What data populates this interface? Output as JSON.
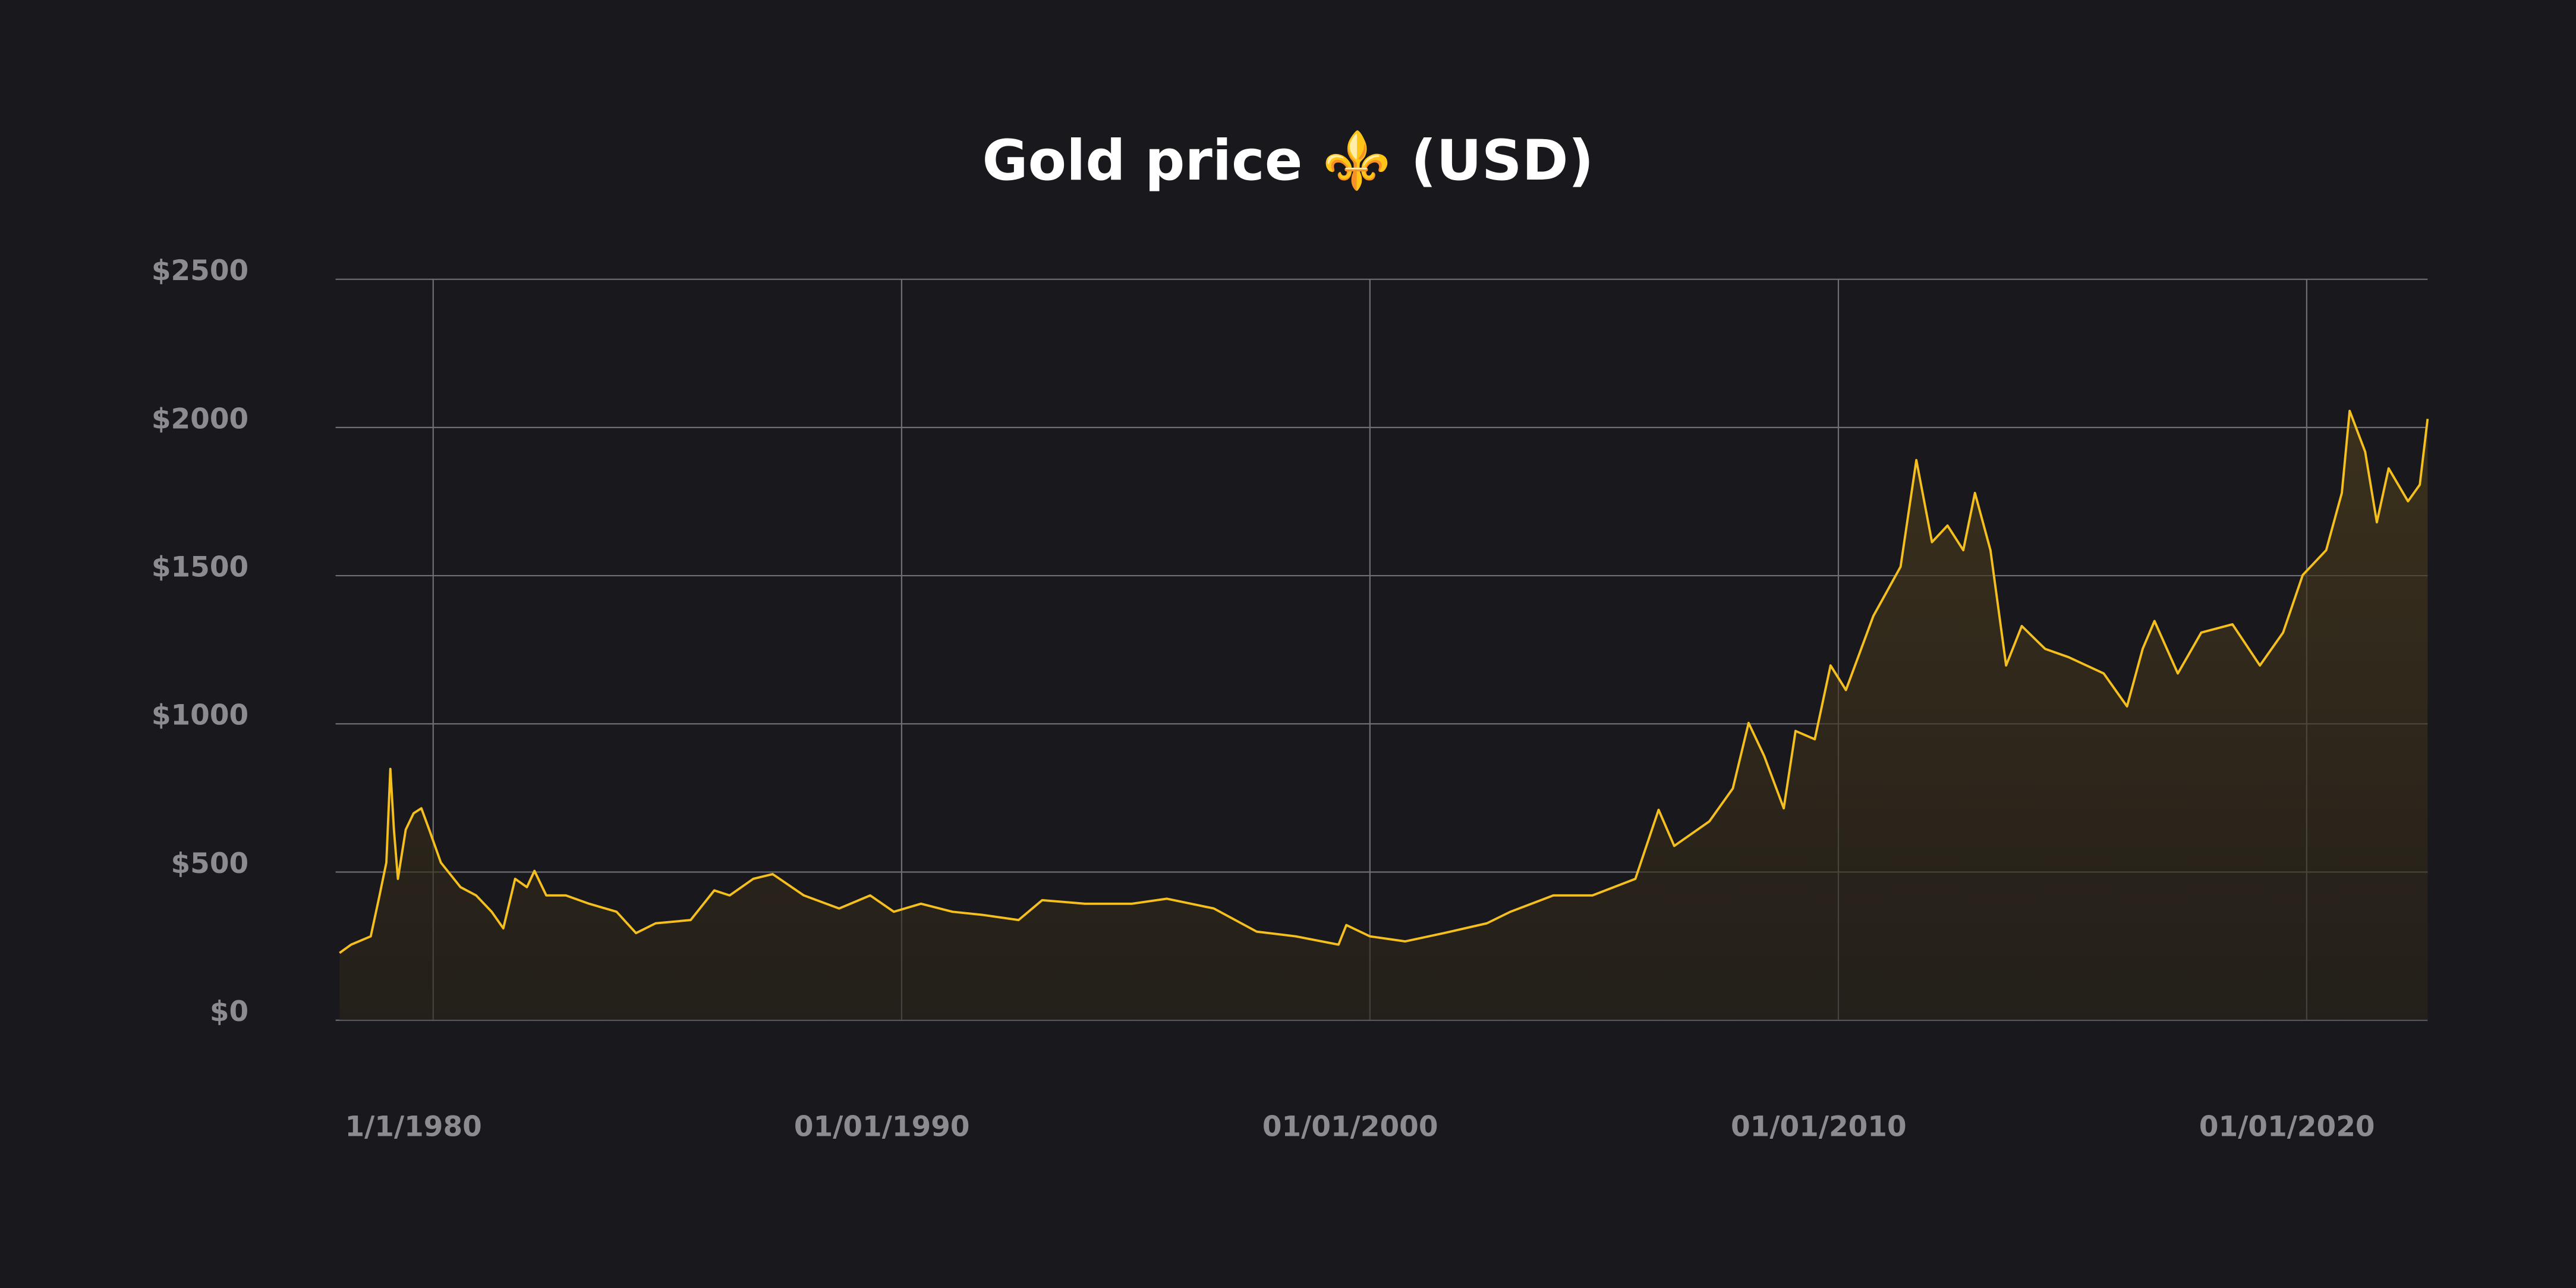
{
  "chart_data": {
    "type": "line",
    "title": "Gold price ⚜️ (USD)",
    "color": "#f5bf1e",
    "grid": true,
    "area": true,
    "xlim": [
      "1977-12-01",
      "2022-08-01"
    ],
    "xticks": [
      {
        "value": "1980-01-01",
        "label": "1/1/1980"
      },
      {
        "value": "1990-01-01",
        "label": "01/01/1990"
      },
      {
        "value": "2000-01-01",
        "label": "01/01/2000"
      },
      {
        "value": "2010-01-01",
        "label": "01/01/2010"
      },
      {
        "value": "2020-01-01",
        "label": "01/01/2020"
      }
    ],
    "ylim": [
      0,
      2500
    ],
    "yticks": [
      {
        "value": 0,
        "label": "$0"
      },
      {
        "value": 500,
        "label": "$500"
      },
      {
        "value": 1000,
        "label": "$1000"
      },
      {
        "value": 1500,
        "label": "$1500"
      },
      {
        "value": 2000,
        "label": "$2000"
      },
      {
        "value": 2500,
        "label": "$2500"
      }
    ],
    "x": [
      "1978-01-01",
      "1978-04-01",
      "1978-09-01",
      "1978-11-01",
      "1979-01-01",
      "1979-02-01",
      "1979-03-01",
      "1979-04-01",
      "1979-06-01",
      "1979-08-01",
      "1979-10-01",
      "1979-12-01",
      "1980-03-01",
      "1980-08-01",
      "1980-12-01",
      "1981-04-01",
      "1981-07-01",
      "1981-10-01",
      "1982-01-01",
      "1982-03-01",
      "1982-06-01",
      "1982-11-01",
      "1983-05-01",
      "1983-12-01",
      "1984-05-01",
      "1984-10-01",
      "1985-07-01",
      "1986-01-01",
      "1986-05-01",
      "1986-11-01",
      "1987-04-01",
      "1987-12-01",
      "1988-09-01",
      "1989-05-01",
      "1989-11-01",
      "1990-06-01",
      "1991-02-01",
      "1991-10-01",
      "1992-07-01",
      "1993-01-01",
      "1993-12-01",
      "1994-12-01",
      "1995-09-01",
      "1996-09-01",
      "1997-08-01",
      "1998-06-01",
      "1999-05-01",
      "1999-07-01",
      "2000-01-01",
      "2000-10-01",
      "2001-08-01",
      "2002-07-01",
      "2003-01-01",
      "2003-12-01",
      "2004-10-01",
      "2005-09-01",
      "2006-03-01",
      "2006-07-01",
      "2007-04-01",
      "2007-10-01",
      "2008-02-01",
      "2008-06-01",
      "2008-11-01",
      "2009-02-01",
      "2009-07-01",
      "2009-11-01",
      "2010-03-01",
      "2010-10-01",
      "2011-05-01",
      "2011-09-01",
      "2012-01-01",
      "2012-05-01",
      "2012-09-01",
      "2012-12-01",
      "2013-04-01",
      "2013-08-01",
      "2013-12-01",
      "2014-06-01",
      "2014-12-01",
      "2015-09-01",
      "2016-03-01",
      "2016-07-01",
      "2016-10-01",
      "2017-04-01",
      "2017-10-01",
      "2018-06-01",
      "2019-01-01",
      "2019-07-01",
      "2019-12-01",
      "2020-06-01",
      "2020-10-01",
      "2020-12-01",
      "2021-04-01",
      "2021-07-01",
      "2021-10-01",
      "2022-03-01",
      "2022-06-01",
      "2022-08-01"
    ],
    "values": [
      227,
      255,
      283,
      405,
      532,
      848,
      643,
      477,
      643,
      698,
      715,
      643,
      532,
      449,
      421,
      366,
      310,
      477,
      449,
      504,
      421,
      421,
      393,
      366,
      294,
      327,
      338,
      438,
      421,
      477,
      493,
      421,
      377,
      421,
      366,
      393,
      366,
      355,
      338,
      405,
      393,
      393,
      410,
      377,
      299,
      283,
      255,
      321,
      283,
      266,
      294,
      327,
      366,
      421,
      421,
      477,
      710,
      588,
      671,
      782,
      1003,
      892,
      715,
      976,
      948,
      1197,
      1114,
      1364,
      1530,
      1890,
      1613,
      1669,
      1586,
      1779,
      1586,
      1197,
      1330,
      1253,
      1225,
      1170,
      1059,
      1253,
      1347,
      1170,
      1308,
      1336,
      1197,
      1308,
      1502,
      1586,
      1779,
      2056,
      1918,
      1680,
      1862,
      1751,
      1807,
      2029
    ]
  }
}
